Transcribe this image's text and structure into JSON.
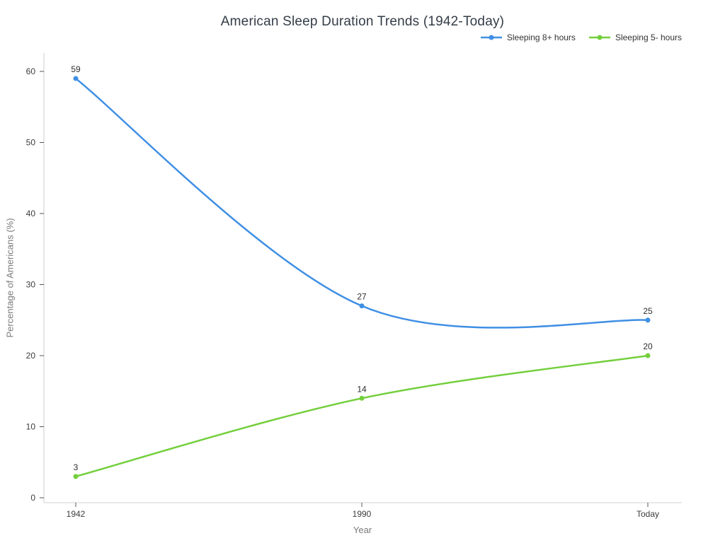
{
  "chart_data": {
    "type": "line",
    "title": "American Sleep Duration Trends (1942-Today)",
    "xlabel": "Year",
    "ylabel": "Percentage of Americans (%)",
    "categories": [
      "1942",
      "1990",
      "Today"
    ],
    "series": [
      {
        "name": "Sleeping 8+ hours",
        "color": "#3f8fe4",
        "values": [
          59,
          27,
          25
        ]
      },
      {
        "name": "Sleeping 5- hours",
        "color": "#73cf3c",
        "values": [
          3,
          14,
          20
        ]
      }
    ],
    "yticks": [
      0,
      10,
      20,
      30,
      40,
      50,
      60
    ],
    "ylim": [
      0,
      63
    ],
    "line_shape": "spline",
    "markers": true,
    "point_labels": [
      [
        "59",
        "27",
        "25"
      ],
      [
        "3",
        "14",
        "20"
      ]
    ],
    "grid": false,
    "legend_position": "top-right"
  },
  "colors": {
    "background": "#ffffff",
    "title": "#333d47",
    "axis_line": "#d9d9d9",
    "tick": "#565656",
    "tick_label": "#3c3c3c",
    "axis_title": "#7b7b7b",
    "point_label": "#2e2e2e",
    "legend_label": "#333333"
  }
}
